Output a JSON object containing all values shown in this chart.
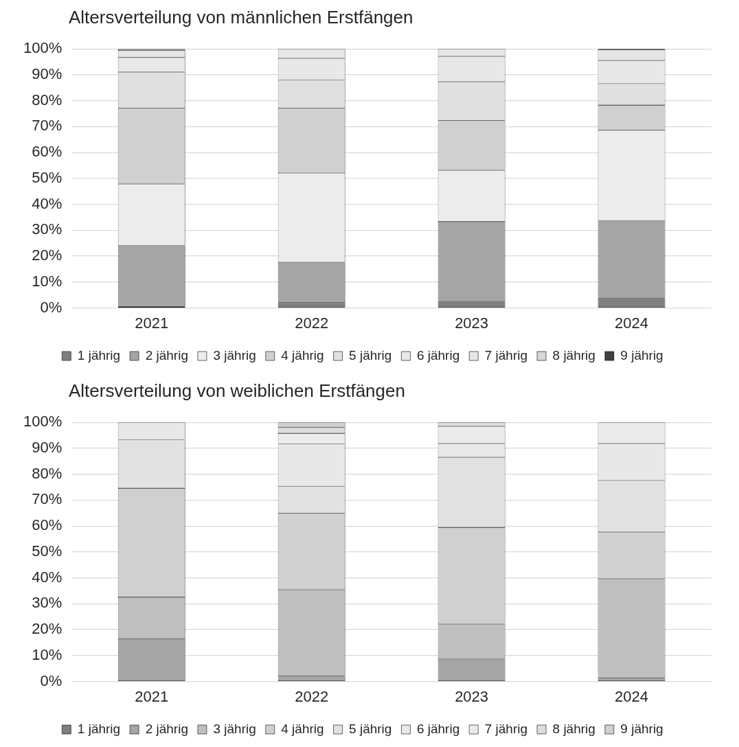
{
  "chart_data": [
    {
      "type": "bar",
      "title": "Altersverteilung von männlichen Erstfängen",
      "categories": [
        "2021",
        "2022",
        "2023",
        "2024"
      ],
      "stacked": true,
      "ylim": [
        0,
        100
      ],
      "yticks": [
        {
          "value": 0,
          "label": "0%"
        },
        {
          "value": 10,
          "label": "10%"
        },
        {
          "value": 20,
          "label": "20%"
        },
        {
          "value": 30,
          "label": "30%"
        },
        {
          "value": 40,
          "label": "40%"
        },
        {
          "value": 50,
          "label": "50%"
        },
        {
          "value": 60,
          "label": "60%"
        },
        {
          "value": 70,
          "label": "70%"
        },
        {
          "value": 80,
          "label": "80%"
        },
        {
          "value": 90,
          "label": "90%"
        },
        {
          "value": 100,
          "label": "100%"
        }
      ],
      "grid": "y",
      "legend": "bottom",
      "series": [
        {
          "name": "1 jährig",
          "color": "#7f7f7f",
          "values": [
            0.5,
            2.1,
            2.6,
            3.7
          ]
        },
        {
          "name": "2 jährig",
          "color": "#a5a5a5",
          "values": [
            23.7,
            15.5,
            30.7,
            30.0
          ]
        },
        {
          "name": "3 jährig",
          "color": "#ececec",
          "values": [
            23.7,
            34.5,
            19.9,
            34.9
          ]
        },
        {
          "name": "4 jährig",
          "color": "#d0d0d0",
          "values": [
            29.2,
            25.0,
            19.2,
            9.7
          ]
        },
        {
          "name": "5 jährig",
          "color": "#e0e0e0",
          "values": [
            14.0,
            10.9,
            14.9,
            8.3
          ]
        },
        {
          "name": "6 jährig",
          "color": "#e8e8e8",
          "values": [
            5.6,
            8.4,
            9.8,
            8.9
          ]
        },
        {
          "name": "7 jährig",
          "color": "#e6e6e6",
          "values": [
            2.8,
            3.6,
            2.9,
            4.1
          ]
        },
        {
          "name": "8 jährig",
          "color": "#d6d6d6",
          "values": [
            0.5,
            0,
            0,
            0
          ]
        },
        {
          "name": "9 jährig",
          "color": "#404040",
          "values": [
            0,
            0,
            0,
            0.5
          ]
        }
      ]
    },
    {
      "type": "bar",
      "title": "Altersverteilung von weiblichen Erstfängen",
      "categories": [
        "2021",
        "2022",
        "2023",
        "2024"
      ],
      "stacked": true,
      "ylim": [
        0,
        100
      ],
      "yticks": [
        {
          "value": 0,
          "label": "0%"
        },
        {
          "value": 10,
          "label": "10%"
        },
        {
          "value": 20,
          "label": "20%"
        },
        {
          "value": 30,
          "label": "30%"
        },
        {
          "value": 40,
          "label": "40%"
        },
        {
          "value": 50,
          "label": "50%"
        },
        {
          "value": 60,
          "label": "60%"
        },
        {
          "value": 70,
          "label": "70%"
        },
        {
          "value": 80,
          "label": "80%"
        },
        {
          "value": 90,
          "label": "90%"
        },
        {
          "value": 100,
          "label": "100%"
        }
      ],
      "grid": "y",
      "legend": "bottom",
      "series": [
        {
          "name": "1 jährig",
          "color": "#7f7f7f",
          "values": [
            0,
            0,
            0,
            0
          ]
        },
        {
          "name": "2 jährig",
          "color": "#a5a5a5",
          "values": [
            16.4,
            2.1,
            8.6,
            1.4
          ]
        },
        {
          "name": "3 jährig",
          "color": "#bfbfbf",
          "values": [
            16.1,
            33.3,
            13.5,
            38.2
          ]
        },
        {
          "name": "4 jährig",
          "color": "#d0d0d0",
          "values": [
            42.1,
            29.5,
            37.4,
            18.1
          ]
        },
        {
          "name": "5 jährig",
          "color": "#e2e2e2",
          "values": [
            18.7,
            10.4,
            27.0,
            19.9
          ]
        },
        {
          "name": "6 jährig",
          "color": "#e8e8e8",
          "values": [
            6.7,
            16.4,
            5.3,
            14.2
          ]
        },
        {
          "name": "7 jährig",
          "color": "#ebebeb",
          "values": [
            0,
            4.1,
            6.7,
            8.2
          ]
        },
        {
          "name": "8 jährig",
          "color": "#dcdcdc",
          "values": [
            0,
            2.3,
            1.5,
            0
          ]
        },
        {
          "name": "9 jährig",
          "color": "#d0d0d0",
          "values": [
            0,
            1.9,
            0,
            0
          ]
        }
      ]
    }
  ]
}
